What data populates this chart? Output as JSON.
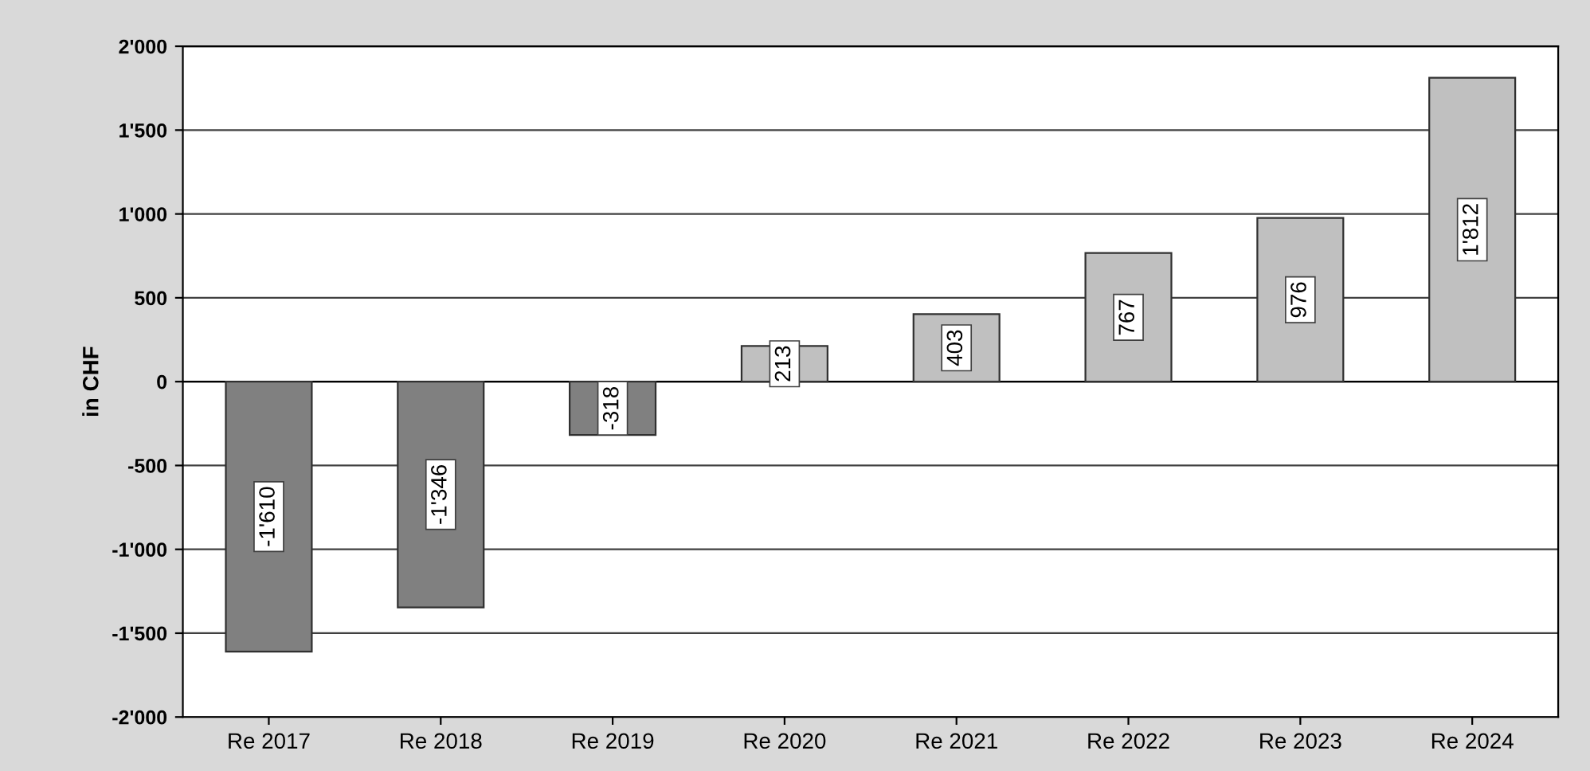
{
  "chart_data": {
    "type": "bar",
    "ylabel": "in CHF",
    "categories": [
      "Re 2017",
      "Re 2018",
      "Re 2019",
      "Re 2020",
      "Re 2021",
      "Re 2022",
      "Re 2023",
      "Re 2024"
    ],
    "values": [
      -1610,
      -1346,
      -318,
      213,
      403,
      767,
      976,
      1812
    ],
    "value_labels": [
      "-1'610",
      "-1'346",
      "-318",
      "213",
      "403",
      "767",
      "976",
      "1'812"
    ],
    "colors": [
      "#808080",
      "#808080",
      "#808080",
      "#c0c0c0",
      "#c0c0c0",
      "#c0c0c0",
      "#c0c0c0",
      "#c0c0c0"
    ],
    "ylim": [
      -2000,
      2000
    ],
    "yticks": [
      {
        "value": -2000,
        "label": "-2'000"
      },
      {
        "value": -1500,
        "label": "-1'500"
      },
      {
        "value": -1000,
        "label": "-1'000"
      },
      {
        "value": -500,
        "label": "-500"
      },
      {
        "value": 0,
        "label": "0"
      },
      {
        "value": 500,
        "label": "500"
      },
      {
        "value": 1000,
        "label": "1'000"
      },
      {
        "value": 1500,
        "label": "1'500"
      },
      {
        "value": 2000,
        "label": "2'000"
      }
    ],
    "grid": "y",
    "legend": false
  }
}
